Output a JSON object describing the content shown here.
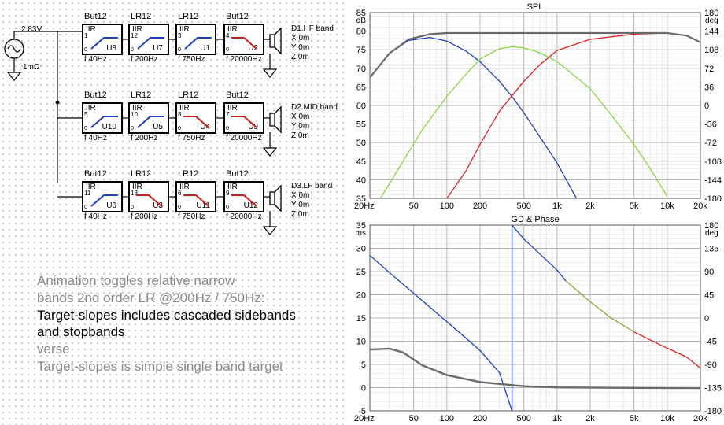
{
  "schematic": {
    "source_voltage": "2.83V",
    "source_resistance": "1mΩ",
    "rows": [
      {
        "modules": [
          {
            "type": "But12",
            "uname": "U8",
            "freq": "f  40Hz",
            "shape": "hp",
            "color": "#1c40c8",
            "pin": "1"
          },
          {
            "type": "LR12",
            "uname": "U7",
            "freq": "f  200Hz",
            "shape": "hp",
            "color": "#1c40c8",
            "pin": "12"
          },
          {
            "type": "LR12",
            "uname": "U1",
            "freq": "f  750Hz",
            "shape": "hp",
            "color": "#1c40c8",
            "pin": "3"
          },
          {
            "type": "But12",
            "uname": "U2",
            "freq": "f  20000Hz",
            "shape": "lp",
            "color": "#d01c1c",
            "pin": "4"
          }
        ],
        "driver": {
          "name": "D1.HF band",
          "x": "X 0m",
          "y": "Y 0m",
          "z": "Z 0m"
        }
      },
      {
        "modules": [
          {
            "type": "But12",
            "uname": "U10",
            "freq": "f  40Hz",
            "shape": "hp",
            "color": "#1c40c8",
            "pin": "5"
          },
          {
            "type": "LR12",
            "uname": "U5",
            "freq": "f  200Hz",
            "shape": "hp",
            "color": "#1c40c8",
            "pin": "10"
          },
          {
            "type": "LR12",
            "uname": "U4",
            "freq": "f  750Hz",
            "shape": "lp",
            "color": "#d01c1c",
            "pin": "8"
          },
          {
            "type": "But12",
            "uname": "U9",
            "freq": "f  20000Hz",
            "shape": "lp",
            "color": "#d01c1c",
            "pin": "7"
          }
        ],
        "driver": {
          "name": "D2.MID band",
          "x": "X 0m",
          "y": "Y 0m",
          "z": "Z 0m"
        }
      },
      {
        "modules": [
          {
            "type": "But12",
            "uname": "U6",
            "freq": "f  40Hz",
            "shape": "hp",
            "color": "#1c40c8",
            "pin": "11"
          },
          {
            "type": "LR12",
            "uname": "U3",
            "freq": "f  200Hz",
            "shape": "lp",
            "color": "#d01c1c",
            "pin": "13"
          },
          {
            "type": "LR12",
            "uname": "U11",
            "freq": "f  750Hz",
            "shape": "lp",
            "color": "#d01c1c",
            "pin": "6"
          },
          {
            "type": "But12",
            "uname": "U12",
            "freq": "f  20000Hz",
            "shape": "lp",
            "color": "#d01c1c",
            "pin": "9"
          }
        ],
        "driver": {
          "name": "D3.LF band",
          "x": "X 0m",
          "y": "Y 0m",
          "z": "Z 0m"
        }
      }
    ],
    "notes": [
      {
        "text": "Animation toggles relative narrow",
        "tone": "grey"
      },
      {
        "text": "bands 2nd order LR @200Hz / 750Hz:",
        "tone": "grey"
      },
      {
        "text": "Target-slopes includes cascaded sidebands",
        "tone": "black"
      },
      {
        "text": "and stopbands",
        "tone": "black"
      },
      {
        "text": "verse",
        "tone": "grey"
      },
      {
        "text": "Target-slopes is simple single band target",
        "tone": "grey"
      }
    ]
  },
  "chart_data": [
    {
      "type": "line",
      "title": "SPL",
      "xscale": "log",
      "xlim": [
        20,
        20000
      ],
      "ylim": [
        35,
        85
      ],
      "ylabel": "dB",
      "y2label": "deg",
      "y2lim": [
        -180,
        180
      ],
      "x_ticks": [
        "20Hz",
        "50",
        "100",
        "200",
        "500",
        "1k",
        "2k",
        "5k",
        "10k",
        "20k"
      ],
      "x_tick_values": [
        20,
        50,
        100,
        200,
        500,
        1000,
        2000,
        5000,
        10000,
        20000
      ],
      "y_ticks": [
        35,
        40,
        45,
        50,
        55,
        60,
        65,
        70,
        75,
        80,
        85
      ],
      "y2_ticks": [
        -180,
        -144,
        -108,
        -72,
        -36,
        0,
        36,
        72,
        108,
        144,
        180
      ],
      "grid": true,
      "series": [
        {
          "color": "#1c40c8",
          "points": [
            [
              20,
              67.5
            ],
            [
              30,
              74
            ],
            [
              45,
              77.5
            ],
            [
              70,
              78.3
            ],
            [
              100,
              77.3
            ],
            [
              150,
              74.6
            ],
            [
              200,
              71.8
            ],
            [
              300,
              66.5
            ],
            [
              400,
              62.0
            ],
            [
              500,
              58.0
            ],
            [
              700,
              51.5
            ],
            [
              1000,
              44.5
            ],
            [
              1500,
              35
            ]
          ]
        },
        {
          "color": "#86d846",
          "points": [
            [
              25,
              35
            ],
            [
              40,
              45
            ],
            [
              60,
              53.5
            ],
            [
              100,
              62.5
            ],
            [
              150,
              68.5
            ],
            [
              200,
              72.5
            ],
            [
              300,
              75.3
            ],
            [
              400,
              75.8
            ],
            [
              500,
              75.5
            ],
            [
              700,
              74.2
            ],
            [
              1000,
              71.8
            ],
            [
              2000,
              64.5
            ],
            [
              3000,
              58.0
            ],
            [
              5000,
              49.5
            ],
            [
              7000,
              43.0
            ],
            [
              10000,
              35.5
            ]
          ]
        },
        {
          "color": "#dc2020",
          "points": [
            [
              100,
              35
            ],
            [
              150,
              42.5
            ],
            [
              200,
              49.5
            ],
            [
              300,
              58.5
            ],
            [
              500,
              66.5
            ],
            [
              700,
              71.0
            ],
            [
              1000,
              74.8
            ],
            [
              2000,
              77.8
            ],
            [
              5000,
              79.2
            ],
            [
              10000,
              79.5
            ],
            [
              15000,
              78.8
            ],
            [
              20000,
              77.0
            ]
          ]
        },
        {
          "color": "#6a6a6a",
          "width": 2.2,
          "points": [
            [
              20,
              67.5
            ],
            [
              30,
              74
            ],
            [
              45,
              77.8
            ],
            [
              70,
              79.2
            ],
            [
              100,
              79.5
            ],
            [
              200,
              79.5
            ],
            [
              500,
              79.5
            ],
            [
              1000,
              79.5
            ],
            [
              5000,
              79.5
            ],
            [
              10000,
              79.5
            ],
            [
              15000,
              78.8
            ],
            [
              20000,
              77.0
            ]
          ]
        }
      ]
    },
    {
      "type": "line",
      "title": "GD & Phase",
      "xscale": "log",
      "xlim": [
        20,
        20000
      ],
      "ylim": [
        -5,
        35
      ],
      "ylabel": "ms",
      "y2label": "deg",
      "y2lim": [
        -180,
        180
      ],
      "x_ticks": [
        "20Hz",
        "50",
        "100",
        "200",
        "500",
        "1k",
        "2k",
        "5k",
        "10k",
        "20k"
      ],
      "x_tick_values": [
        20,
        50,
        100,
        200,
        500,
        1000,
        2000,
        5000,
        10000,
        20000
      ],
      "y_ticks": [
        -5,
        0,
        5,
        10,
        15,
        20,
        25,
        30,
        35
      ],
      "y2_ticks": [
        -180,
        -135,
        -90,
        -45,
        0,
        45,
        90,
        135,
        180
      ],
      "grid": true,
      "series": [
        {
          "color": "#1c40c8",
          "points": [
            [
              20,
              28.5
            ],
            [
              30,
              24.8
            ],
            [
              50,
              20.3
            ],
            [
              100,
              14.2
            ],
            [
              200,
              8.0
            ],
            [
              300,
              3.2
            ],
            [
              390,
              -5
            ],
            [
              390,
              35
            ],
            [
              500,
              32.0
            ],
            [
              1000,
              25.3
            ],
            [
              1200,
              23.0
            ]
          ]
        },
        {
          "color": "#8fa832",
          "points": [
            [
              1200,
              23.0
            ],
            [
              2000,
              18.5
            ],
            [
              3000,
              15.2
            ],
            [
              5000,
              12.0
            ]
          ]
        },
        {
          "color": "#dc2020",
          "points": [
            [
              5000,
              12.0
            ],
            [
              8000,
              9.6
            ],
            [
              10000,
              8.5
            ],
            [
              15000,
              6.6
            ],
            [
              20000,
              4.2
            ]
          ]
        },
        {
          "color": "#6a6a6a",
          "width": 2.4,
          "points": [
            [
              20,
              8.2
            ],
            [
              30,
              8.4
            ],
            [
              40,
              7.6
            ],
            [
              60,
              4.8
            ],
            [
              100,
              2.7
            ],
            [
              200,
              1.2
            ],
            [
              500,
              0.3
            ],
            [
              1000,
              0.05
            ],
            [
              5000,
              -0.05
            ],
            [
              20000,
              -0.1
            ]
          ]
        }
      ]
    }
  ]
}
